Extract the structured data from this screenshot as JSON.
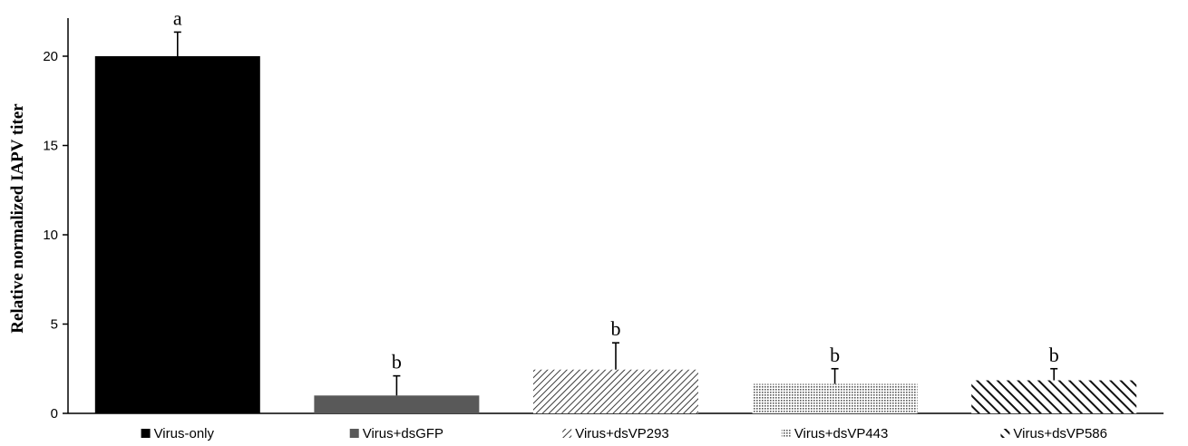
{
  "chart_data": {
    "type": "bar",
    "ylabel": "Relative normalized IAPV titer",
    "ylim": [
      0,
      20
    ],
    "yticks": [
      0,
      5,
      10,
      15,
      20
    ],
    "categories": [
      "Virus-only",
      "Virus+dsGFP",
      "Virus+dsVP293",
      "Virus+dsVP443",
      "Virus+dsVP586"
    ],
    "values": [
      20.0,
      1.0,
      2.45,
      1.65,
      1.85
    ],
    "error_plus": [
      1.35,
      1.1,
      1.5,
      0.85,
      0.65
    ],
    "significance": [
      "a",
      "b",
      "b",
      "b",
      "b"
    ],
    "fills": [
      "solid-black",
      "solid-gray",
      "diagonal-fine",
      "dots",
      "diagonal-bold"
    ],
    "colors": {
      "virus_only": "#000000",
      "virus_dsgfp": "#595959",
      "pattern": "#3a3a3a",
      "axis": "#000000"
    }
  }
}
